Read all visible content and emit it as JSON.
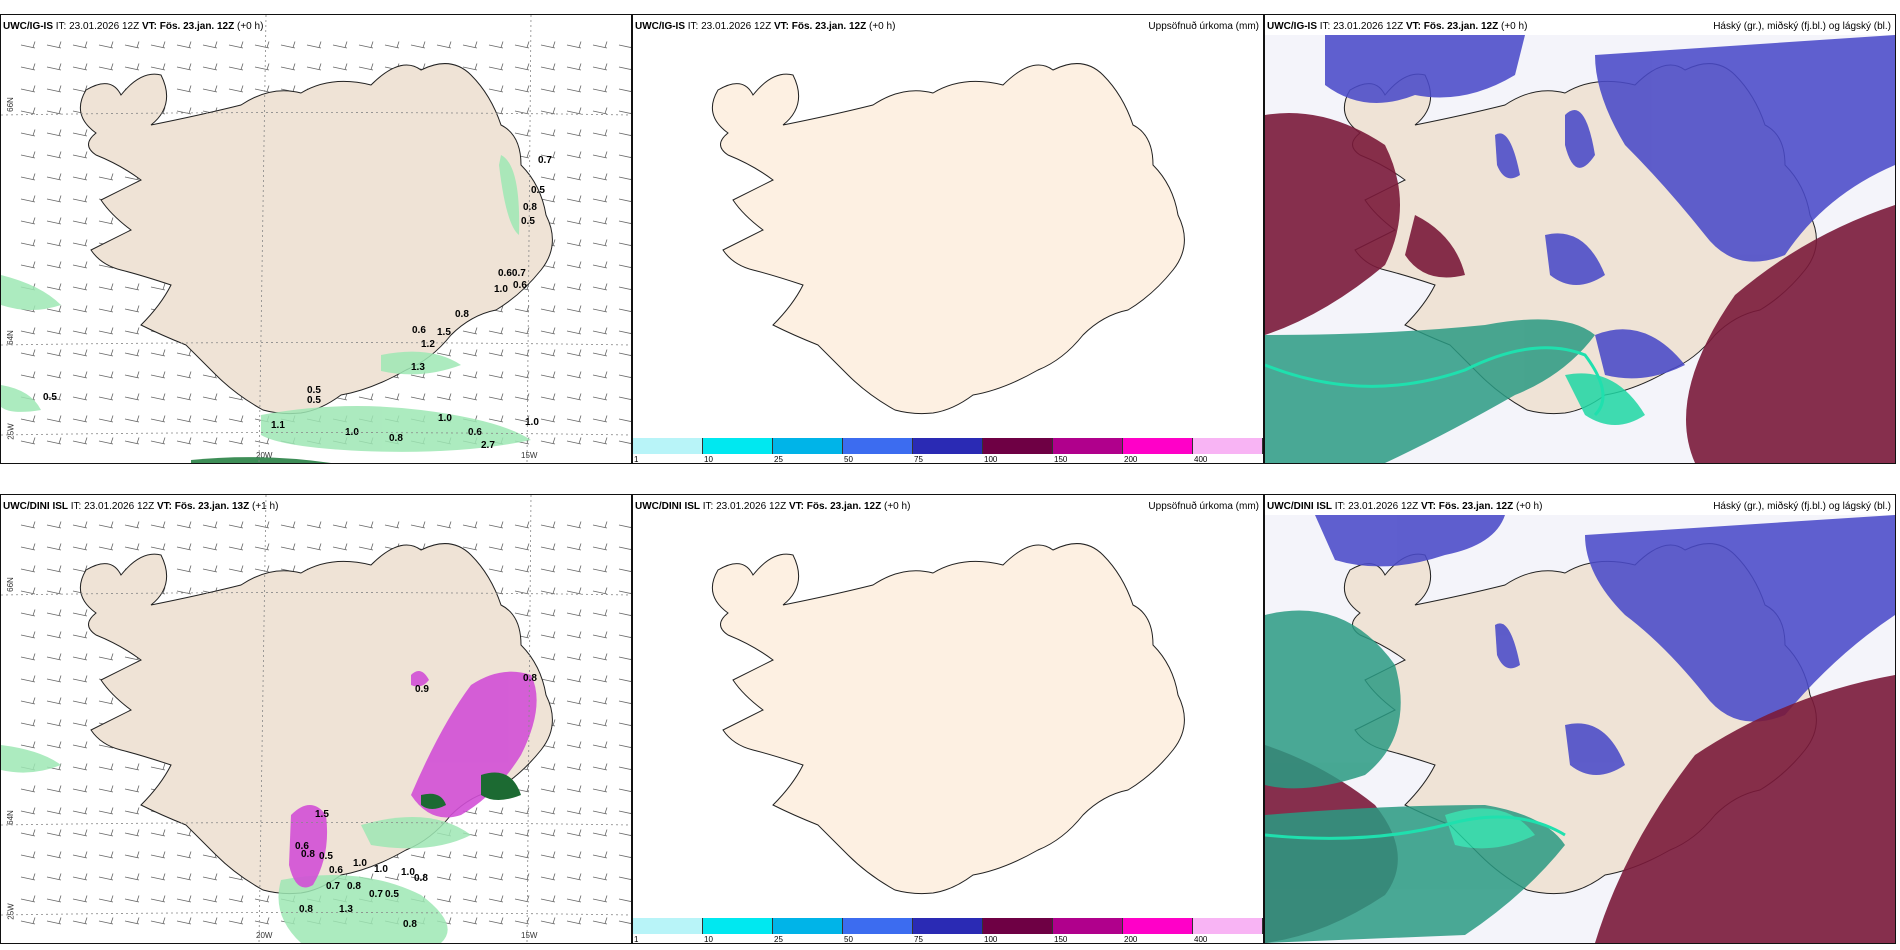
{
  "rows": [
    {
      "wind": {
        "model": "UWC/IG-IS",
        "init": "IT: 23.01.2026 12Z",
        "vt_label": "VT:",
        "vt": "Fös. 23.jan. 12Z",
        "lead": "(+0 h)"
      },
      "precip": {
        "model": "UWC/IG-IS",
        "init": "IT: 23.01.2026 12Z",
        "vt_label": "VT:",
        "vt": "Fös. 23.jan. 12Z",
        "lead": "(+0 h)",
        "right_title": "Uppsöfnuð úrkoma (mm)"
      },
      "cloud": {
        "model": "UWC/IG-IS",
        "init": "IT: 23.01.2026 12Z",
        "vt_label": "VT:",
        "vt": "Fös. 23.jan. 12Z",
        "lead": "(+0 h)",
        "right_title": "Háský (gr.), miðský (fj.bl.) og lágský (bl.)"
      }
    },
    {
      "wind": {
        "model": "UWC/DINI ISL",
        "init": "IT: 23.01.2026 12Z",
        "vt_label": "VT:",
        "vt": "Fös. 23.jan. 13Z",
        "lead": "(+1 h)"
      },
      "precip": {
        "model": "UWC/DINI ISL",
        "init": "IT: 23.01.2026 12Z",
        "vt_label": "VT:",
        "vt": "Fös. 23.jan. 12Z",
        "lead": "(+0 h)",
        "right_title": "Uppsöfnuð úrkoma (mm)"
      },
      "cloud": {
        "model": "UWC/DINI ISL",
        "init": "IT: 23.01.2026 12Z",
        "vt_label": "VT:",
        "vt": "Fös. 23.jan. 12Z",
        "lead": "(+0 h)",
        "right_title": "Háský (gr.), miðský (fj.bl.) og lágský (bl.)"
      }
    }
  ],
  "axis_labels": {
    "lat_66": "66N",
    "lat_64": "64N",
    "lat_25": "25W",
    "lon_20": "20W",
    "lon_15": "15W"
  },
  "precip_legend": {
    "ticks": [
      "1",
      "10",
      "25",
      "50",
      "75",
      "100",
      "150",
      "200",
      "400"
    ],
    "colors": [
      "#b8f4f8",
      "#00e8f0",
      "#00b4e8",
      "#3c6cf0",
      "#2a2ab4",
      "#6e0044",
      "#b0008c",
      "#ff00c8",
      "#f8b4f4"
    ]
  },
  "wind_labels_top": [
    {
      "v": "0.7"
    },
    {
      "v": "0.5"
    },
    {
      "v": "0.8"
    },
    {
      "v": "0.5"
    },
    {
      "v": "0.60.7"
    },
    {
      "v": "0.6"
    },
    {
      "v": "1.0"
    },
    {
      "v": "0.8"
    },
    {
      "v": "0.6"
    },
    {
      "v": "1.5"
    },
    {
      "v": "1.2"
    },
    {
      "v": "1.3"
    },
    {
      "v": "0.5"
    },
    {
      "v": "0.5"
    },
    {
      "v": "0.5"
    },
    {
      "v": "1.1"
    },
    {
      "v": "1.0"
    },
    {
      "v": "1.0"
    },
    {
      "v": "0.6"
    },
    {
      "v": "0.8"
    },
    {
      "v": "1.0"
    },
    {
      "v": "2.7"
    }
  ],
  "wind_labels_bottom": [
    {
      "v": "0.9"
    },
    {
      "v": "0.8"
    },
    {
      "v": "1.5"
    },
    {
      "v": "0.6"
    },
    {
      "v": "0.8"
    },
    {
      "v": "0.5"
    },
    {
      "v": "0.6"
    },
    {
      "v": "0.7"
    },
    {
      "v": "0.8"
    },
    {
      "v": "1.0"
    },
    {
      "v": "1.0"
    },
    {
      "v": "1.0"
    },
    {
      "v": "0.8"
    },
    {
      "v": "0.7"
    },
    {
      "v": "0.5"
    },
    {
      "v": "0.8"
    },
    {
      "v": "1.3"
    },
    {
      "v": "0.8"
    }
  ],
  "colors": {
    "land": "#efe3d6",
    "sea": "#ffffff",
    "coast": "#222222",
    "precip_green": "#33c96b",
    "precip_magenta": "#d24fd6",
    "cloud_blue": "#4a4ac8",
    "cloud_maroon": "#7a1a3a",
    "cloud_teal": "#1fb08a"
  }
}
